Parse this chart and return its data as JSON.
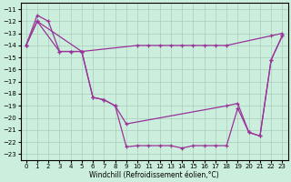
{
  "xlabel": "Windchill (Refroidissement éolien,°C)",
  "x_ticks": [
    0,
    1,
    2,
    3,
    4,
    5,
    6,
    7,
    8,
    9,
    10,
    11,
    12,
    13,
    14,
    15,
    16,
    17,
    18,
    19,
    20,
    21,
    22,
    23
  ],
  "y_ticks": [
    -11,
    -12,
    -13,
    -14,
    -15,
    -16,
    -17,
    -18,
    -19,
    -20,
    -21,
    -22,
    -23
  ],
  "ylim": [
    -23.5,
    -10.5
  ],
  "xlim": [
    -0.5,
    23.5
  ],
  "line_color": "#993399",
  "bg_color": "#cceedd",
  "grid_color": "#aaccbb",
  "line1_x": [
    0,
    1,
    2,
    3,
    4,
    5,
    10,
    11,
    12,
    13,
    14,
    15,
    16,
    17,
    18,
    22,
    23
  ],
  "line1_y": [
    -14.0,
    -11.5,
    -12.0,
    -14.5,
    -14.5,
    -14.5,
    -14.0,
    -14.0,
    -14.0,
    -14.0,
    -14.0,
    -14.0,
    -14.0,
    -14.0,
    -14.0,
    -13.2,
    -13.0
  ],
  "line2_x": [
    0,
    1,
    3,
    4,
    5,
    6,
    7,
    8,
    9,
    18,
    19,
    20,
    21,
    22,
    23
  ],
  "line2_y": [
    -14.0,
    -12.0,
    -14.5,
    -14.5,
    -14.5,
    -18.3,
    -18.5,
    -19.0,
    -20.5,
    -19.0,
    -18.8,
    -21.2,
    -21.5,
    -15.2,
    -13.2
  ],
  "line3_x": [
    0,
    1,
    5,
    6,
    7,
    8,
    9,
    10,
    11,
    12,
    13,
    14,
    15,
    16,
    17,
    18,
    19,
    20,
    21,
    22,
    23
  ],
  "line3_y": [
    -14.0,
    -12.0,
    -14.5,
    -18.3,
    -18.5,
    -19.0,
    -22.4,
    -22.3,
    -22.3,
    -22.3,
    -22.3,
    -22.5,
    -22.3,
    -22.3,
    -22.3,
    -22.3,
    -19.2,
    -21.2,
    -21.5,
    -15.2,
    -13.2
  ]
}
